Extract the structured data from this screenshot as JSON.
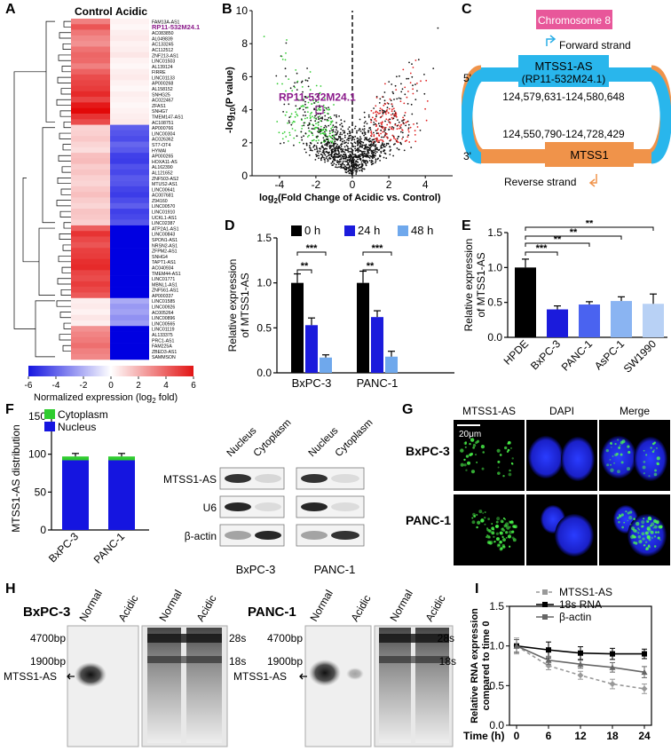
{
  "figure": {
    "panel_letters": [
      "A",
      "B",
      "C",
      "D",
      "E",
      "F",
      "G",
      "H",
      "I"
    ]
  },
  "panelA": {
    "col_labels": [
      "Control",
      "Acidic"
    ],
    "highlight_gene": "RP11-532M24.1",
    "genes": [
      "FAM13A-AS1",
      "RP11-532M24.1",
      "AC083850",
      "AL049839",
      "AC133245",
      "AC112512",
      "ZNF213-AS1",
      "LINC01503",
      "AL139124",
      "FIRRE",
      "LINC01133",
      "AP000268",
      "AL158152",
      "SNHG25",
      "AC022467",
      "ZFAS1",
      "SNHG7",
      "TMEM147-AS1",
      "AC108751",
      "AP000766",
      "LINC00304",
      "AC026362",
      "ST7-OT4",
      "HYMAI",
      "AP000265",
      "HOXA11-AS",
      "AL162390",
      "AL121652",
      "ZNF503-AS2",
      "MTUS2-AS1",
      "LINC00641",
      "AC007681",
      "Z94160",
      "LINC00570",
      "LINC01910",
      "UCKL1-AS1",
      "LINC02387",
      "ATP2A1-AS1",
      "LINC00843",
      "SPON1-AS1",
      "NRSN2-AS1",
      "ZFPM2-AS1",
      "SNHG4",
      "TAPT1-AS1",
      "AC040934",
      "TMEM44-AS1",
      "LINC01771",
      "MBNL1-AS1",
      "ZNF561-AS1",
      "AP000337",
      "LINC01585",
      "LINC00926",
      "AC005264",
      "LINC00896",
      "LINC00565",
      "LINC01119",
      "AL133375",
      "PRC1-AS1",
      "FAM225A",
      "ZBED3-AS1",
      "SAMMSON"
    ],
    "control_fold": [
      3.0,
      4.0,
      3.2,
      2.8,
      2.6,
      3.3,
      3.6,
      3.5,
      3.0,
      3.7,
      4.2,
      4.4,
      4.6,
      5.0,
      4.4,
      5.4,
      5.8,
      4.8,
      4.2,
      1.0,
      1.1,
      1.3,
      1.0,
      0.8,
      1.5,
      1.6,
      1.2,
      1.4,
      1.1,
      1.0,
      1.3,
      1.5,
      1.2,
      1.0,
      1.4,
      1.3,
      1.1,
      3.8,
      4.8,
      4.3,
      4.0,
      4.5,
      4.6,
      4.9,
      5.0,
      4.4,
      4.2,
      4.6,
      4.3,
      3.9,
      0.4,
      0.5,
      0.3,
      0.6,
      0.4,
      2.6,
      2.9,
      3.1,
      3.4,
      3.0,
      2.8
    ],
    "acidic_fold": [
      0.3,
      0.2,
      0.4,
      0.5,
      0.3,
      0.4,
      0.6,
      0.3,
      0.2,
      0.4,
      0.5,
      0.3,
      0.2,
      0.4,
      0.3,
      0.2,
      0.3,
      0.4,
      0.5,
      -3.8,
      -4.0,
      -4.2,
      -3.6,
      -3.9,
      -4.5,
      -4.6,
      -4.1,
      -4.3,
      -3.9,
      -4.0,
      -4.4,
      -4.6,
      -4.2,
      -3.8,
      -4.5,
      -4.3,
      -4.0,
      -6,
      -6,
      -6,
      -6,
      -6,
      -6,
      -6,
      -6,
      -6,
      -6,
      -6,
      -6,
      -6,
      -2.0,
      -2.4,
      -2.2,
      -2.6,
      -2.3,
      -6,
      -6,
      -6,
      -6,
      -6,
      -6
    ],
    "colorbar_ticks": [
      "-6",
      "-4",
      "-2",
      "0",
      "2",
      "4",
      "6"
    ],
    "colorbar_label": "Normalized expression (log",
    "colorbar_label_sub": "2",
    "colorbar_label_end": " fold)"
  },
  "panelB": {
    "xlabel": "log",
    "xlabel_sub": "2",
    "xlabel_end": "(Fold Change of Acidic vs. Control)",
    "ylabel": "-log",
    "ylabel_sub": "10",
    "ylabel_end": "(P value)",
    "xticks": [
      "-4",
      "-2",
      "0",
      "2",
      "4"
    ],
    "yticks": [
      "0",
      "2",
      "4",
      "6",
      "8",
      "10"
    ],
    "xlim": [
      -5.5,
      5.5
    ],
    "ylim": [
      0,
      10
    ],
    "highlight_label": "RP11-532M24.1",
    "highlight_point": [
      -1.8,
      4.0
    ]
  },
  "panelC": {
    "chromosome": "Chromosome 8",
    "forward": "Forward strand",
    "reverse": "Reverse strand",
    "gene1": "MTSS1-AS",
    "gene1_alias": "(RP11-532M24.1)",
    "coords1": "124,579,631-124,580,648",
    "coords2": "124,550,790-124,728,429",
    "gene2": "MTSS1",
    "end5": "5'",
    "end3": "3'"
  },
  "panelD": {
    "chart_data": {
      "type": "bar",
      "categories": [
        "BxPC-3",
        "PANC-1"
      ],
      "series": [
        {
          "name": "0 h",
          "values": [
            1.0,
            1.0
          ],
          "errors": [
            0.1,
            0.13
          ],
          "color": "#000000"
        },
        {
          "name": "24 h",
          "values": [
            0.53,
            0.62
          ],
          "errors": [
            0.08,
            0.07
          ],
          "color": "#1b1bdc"
        },
        {
          "name": "48 h",
          "values": [
            0.17,
            0.18
          ],
          "errors": [
            0.03,
            0.06
          ],
          "color": "#6fa8ec"
        }
      ],
      "ylabel": "Relative expression of MTSS1-AS",
      "ylim": [
        0,
        1.5
      ],
      "yticks": [
        "0.0",
        "0.5",
        "1.0",
        "1.5"
      ],
      "sig": [
        "**",
        "***",
        "**",
        "***"
      ]
    }
  },
  "panelE": {
    "chart_data": {
      "type": "bar",
      "categories": [
        "HPDE",
        "BxPC-3",
        "PANC-1",
        "AsPC-1",
        "SW1990"
      ],
      "values": [
        1.0,
        0.4,
        0.47,
        0.52,
        0.48
      ],
      "errors": [
        0.12,
        0.05,
        0.04,
        0.06,
        0.14
      ],
      "colors": [
        "#000000",
        "#1b1bdc",
        "#4a63f0",
        "#8ab4f2",
        "#b8d1f5"
      ],
      "ylabel": "Relative expression of MTSS1-AS",
      "ylim": [
        0,
        1.5
      ],
      "yticks": [
        "0.0",
        "0.5",
        "1.0",
        "1.5"
      ],
      "sig": [
        "***",
        "**",
        "**",
        "**"
      ]
    }
  },
  "panelF": {
    "chart_data": {
      "type": "bar",
      "stacked": true,
      "categories": [
        "BxPC-3",
        "PANC-1"
      ],
      "series": [
        {
          "name": "Nucleus",
          "values": [
            92,
            92
          ],
          "color": "#1515e0"
        },
        {
          "name": "Cytoplasm",
          "values": [
            5,
            5
          ],
          "color": "#2ecc2e"
        }
      ],
      "ylabel": "MTSS1-AS distribution",
      "ylim": [
        0,
        150
      ],
      "yticks": [
        "0",
        "50",
        "100",
        "150"
      ]
    },
    "blot_cols": [
      "Nucleus",
      "Cytoplasm",
      "Nucleus",
      "Cytoplasm"
    ],
    "blot_rows": [
      "MTSS1-AS",
      "U6",
      "β-actin"
    ],
    "blot_cells": [
      "BxPC-3",
      "PANC-1"
    ]
  },
  "panelG": {
    "cols": [
      "MTSS1-AS",
      "DAPI",
      "Merge"
    ],
    "rows": [
      "BxPC-3",
      "PANC-1"
    ],
    "scale": "20μm"
  },
  "panelH": {
    "left_cell": "BxPC-3",
    "right_cell": "PANC-1",
    "lanes": [
      "Normal",
      "Acidic",
      "Normal",
      "Acidic"
    ],
    "markers_left": [
      "4700bp",
      "1900bp"
    ],
    "markers_right": [
      "28s",
      "18s"
    ],
    "target": "MTSS1-AS"
  },
  "panelI": {
    "chart_data": {
      "type": "line",
      "x": [
        0,
        6,
        12,
        18,
        24
      ],
      "series": [
        {
          "name": "MTSS1-AS",
          "values": [
            1.0,
            0.75,
            0.63,
            0.52,
            0.46
          ],
          "errors": [
            0.1,
            0.05,
            0.05,
            0.06,
            0.06
          ],
          "color": "#999999",
          "dashed": true
        },
        {
          "name": "18s RNA",
          "values": [
            1.0,
            0.95,
            0.91,
            0.9,
            0.9
          ],
          "errors": [
            0.08,
            0.1,
            0.08,
            0.07,
            0.06
          ],
          "color": "#000000",
          "dashed": false
        },
        {
          "name": "β-actin",
          "values": [
            1.0,
            0.82,
            0.77,
            0.73,
            0.67
          ],
          "errors": [
            0.08,
            0.05,
            0.05,
            0.06,
            0.07
          ],
          "color": "#666666",
          "dashed": false
        }
      ],
      "xlabel": "Time (h)",
      "ylabel": "Relative RNA expression compared to time 0",
      "xticks": [
        "0",
        "6",
        "12",
        "18",
        "24"
      ],
      "yticks": [
        "0.0",
        "0.5",
        "1.0",
        "1.5"
      ],
      "ylim": [
        0,
        1.5
      ]
    }
  }
}
